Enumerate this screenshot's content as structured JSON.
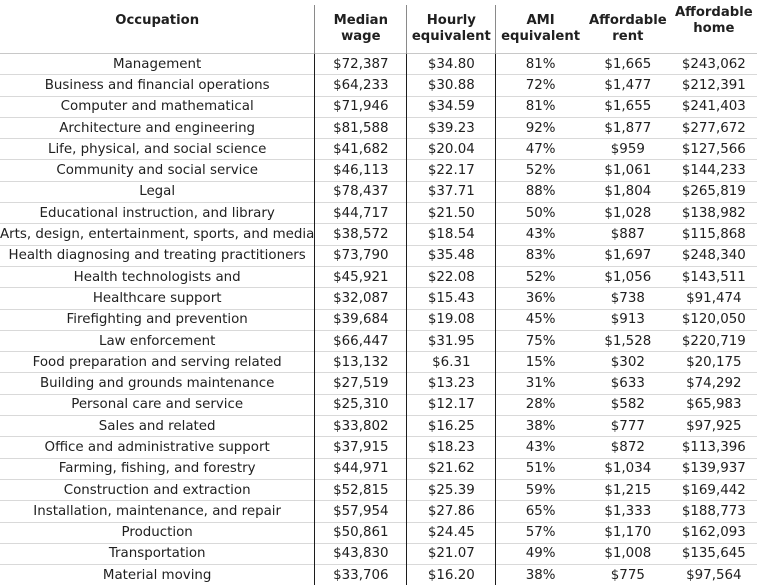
{
  "headers": {
    "occupation": "Occupation",
    "median_wage": [
      "Median",
      "wage"
    ],
    "hourly": [
      "Hourly",
      "equivalent"
    ],
    "ami": [
      "AMI",
      "equivalent"
    ],
    "rent": [
      "Affordable",
      "rent"
    ],
    "home": [
      "Affordable",
      "home"
    ]
  },
  "rows": [
    [
      "Management",
      "$72,387",
      "$34.80",
      "81%",
      "$1,665",
      "$243,062"
    ],
    [
      "Business and financial operations",
      "$64,233",
      "$30.88",
      "72%",
      "$1,477",
      "$212,391"
    ],
    [
      "Computer and mathematical",
      "$71,946",
      "$34.59",
      "81%",
      "$1,655",
      "$241,403"
    ],
    [
      "Architecture and engineering",
      "$81,588",
      "$39.23",
      "92%",
      "$1,877",
      "$277,672"
    ],
    [
      "Life, physical, and social science",
      "$41,682",
      "$20.04",
      "47%",
      "$959",
      "$127,566"
    ],
    [
      "Community and social service",
      "$46,113",
      "$22.17",
      "52%",
      "$1,061",
      "$144,233"
    ],
    [
      "Legal",
      "$78,437",
      "$37.71",
      "88%",
      "$1,804",
      "$265,819"
    ],
    [
      "Educational instruction, and library",
      "$44,717",
      "$21.50",
      "50%",
      "$1,028",
      "$138,982"
    ],
    [
      "Arts, design, entertainment, sports, and media",
      "$38,572",
      "$18.54",
      "43%",
      "$887",
      "$115,868"
    ],
    [
      "Health diagnosing and treating practitioners",
      "$73,790",
      "$35.48",
      "83%",
      "$1,697",
      "$248,340"
    ],
    [
      "Health technologists and",
      "$45,921",
      "$22.08",
      "52%",
      "$1,056",
      "$143,511"
    ],
    [
      "Healthcare support",
      "$32,087",
      "$15.43",
      "36%",
      "$738",
      "$91,474"
    ],
    [
      "Firefighting and prevention",
      "$39,684",
      "$19.08",
      "45%",
      "$913",
      "$120,050"
    ],
    [
      "Law enforcement",
      "$66,447",
      "$31.95",
      "75%",
      "$1,528",
      "$220,719"
    ],
    [
      "Food preparation and serving related",
      "$13,132",
      "$6.31",
      "15%",
      "$302",
      "$20,175"
    ],
    [
      "Building and grounds maintenance",
      "$27,519",
      "$13.23",
      "31%",
      "$633",
      "$74,292"
    ],
    [
      "Personal care and service",
      "$25,310",
      "$12.17",
      "28%",
      "$582",
      "$65,983"
    ],
    [
      "Sales and related",
      "$33,802",
      "$16.25",
      "38%",
      "$777",
      "$97,925"
    ],
    [
      "Office and administrative support",
      "$37,915",
      "$18.23",
      "43%",
      "$872",
      "$113,396"
    ],
    [
      "Farming, fishing, and forestry",
      "$44,971",
      "$21.62",
      "51%",
      "$1,034",
      "$139,937"
    ],
    [
      "Construction and extraction",
      "$52,815",
      "$25.39",
      "59%",
      "$1,215",
      "$169,442"
    ],
    [
      "Installation, maintenance, and repair",
      "$57,954",
      "$27.86",
      "65%",
      "$1,333",
      "$188,773"
    ],
    [
      "Production",
      "$50,861",
      "$24.45",
      "57%",
      "$1,170",
      "$162,093"
    ],
    [
      "Transportation",
      "$43,830",
      "$21.07",
      "49%",
      "$1,008",
      "$135,645"
    ],
    [
      "Material moving",
      "$33,706",
      "$16.20",
      "38%",
      "$775",
      "$97,564"
    ]
  ]
}
